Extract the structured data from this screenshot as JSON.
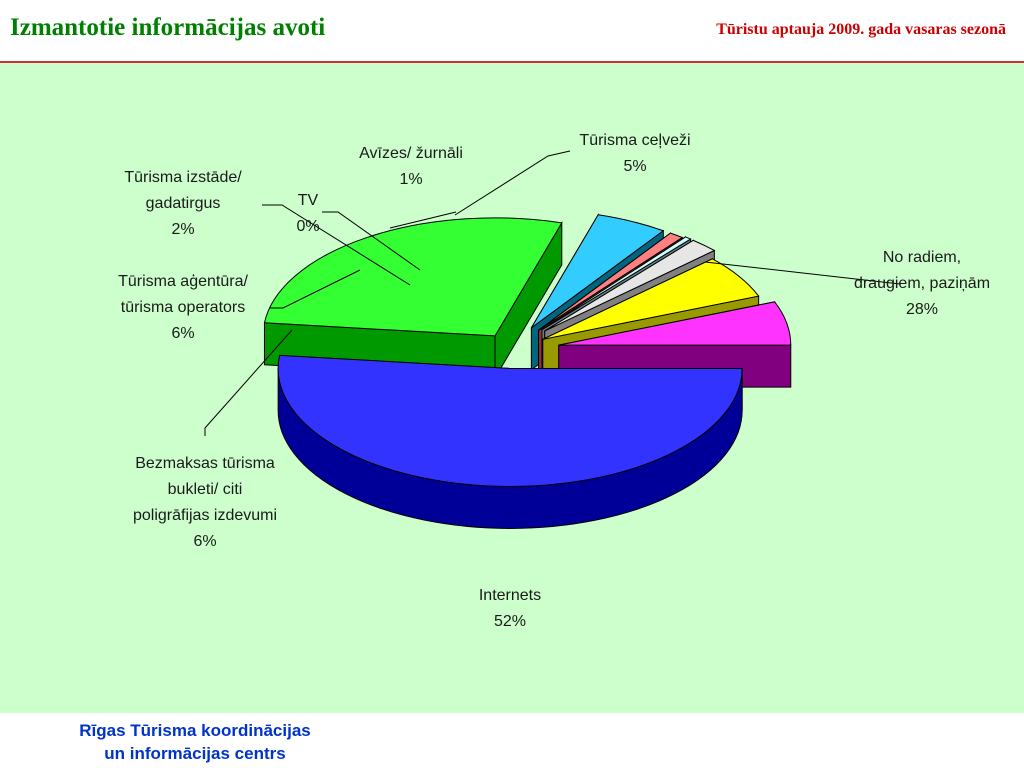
{
  "header": {
    "title": "Izmantotie informācijas avoti",
    "subtitle": "Tūristu aptauja 2009. gada vasaras sezonā"
  },
  "footer": {
    "line1": "Rīgas Tūrisma koordinācijas",
    "line2": "un informācijas centrs"
  },
  "colors": {
    "title": "#008000",
    "subtitle": "#cc0000",
    "background": "#ccffcc",
    "footer_text": "#0033cc"
  },
  "chart_data": {
    "type": "pie",
    "variant": "3d-exploded",
    "slices": [
      {
        "lines": [
          "Internets"
        ],
        "value_label": "52%",
        "value": 52,
        "color": "#3333ff",
        "side_color": "#000099"
      },
      {
        "lines": [
          "No radiem,",
          "draugiem, paziņām"
        ],
        "value_label": "28%",
        "value": 28,
        "color": "#33ff33",
        "side_color": "#009900"
      },
      {
        "lines": [
          "Tūrisma ceļveži"
        ],
        "value_label": "5%",
        "value": 5,
        "color": "#33ccff",
        "side_color": "#006680"
      },
      {
        "lines": [
          "Avīzes/ žurnāli"
        ],
        "value_label": "1%",
        "value": 1,
        "color": "#ff8080",
        "side_color": "#993333"
      },
      {
        "lines": [
          "TV"
        ],
        "value_label": "0%",
        "value": 0,
        "color": "#ccffff",
        "side_color": "#668080"
      },
      {
        "lines": [
          "Tūrisma izstāde/",
          "gadatirgus"
        ],
        "value_label": "2%",
        "value": 2,
        "color": "#e6e6e6",
        "side_color": "#808080"
      },
      {
        "lines": [
          "Tūrisma aģentūra/",
          "tūrisma operators"
        ],
        "value_label": "6%",
        "value": 6,
        "color": "#ffff00",
        "side_color": "#999900"
      },
      {
        "lines": [
          "Bezmaksas tūrisma",
          "bukleti/ citi",
          "poligrāfijas izdevumi"
        ],
        "value_label": "6%",
        "value": 6,
        "color": "#ff33ff",
        "side_color": "#800080"
      }
    ]
  }
}
